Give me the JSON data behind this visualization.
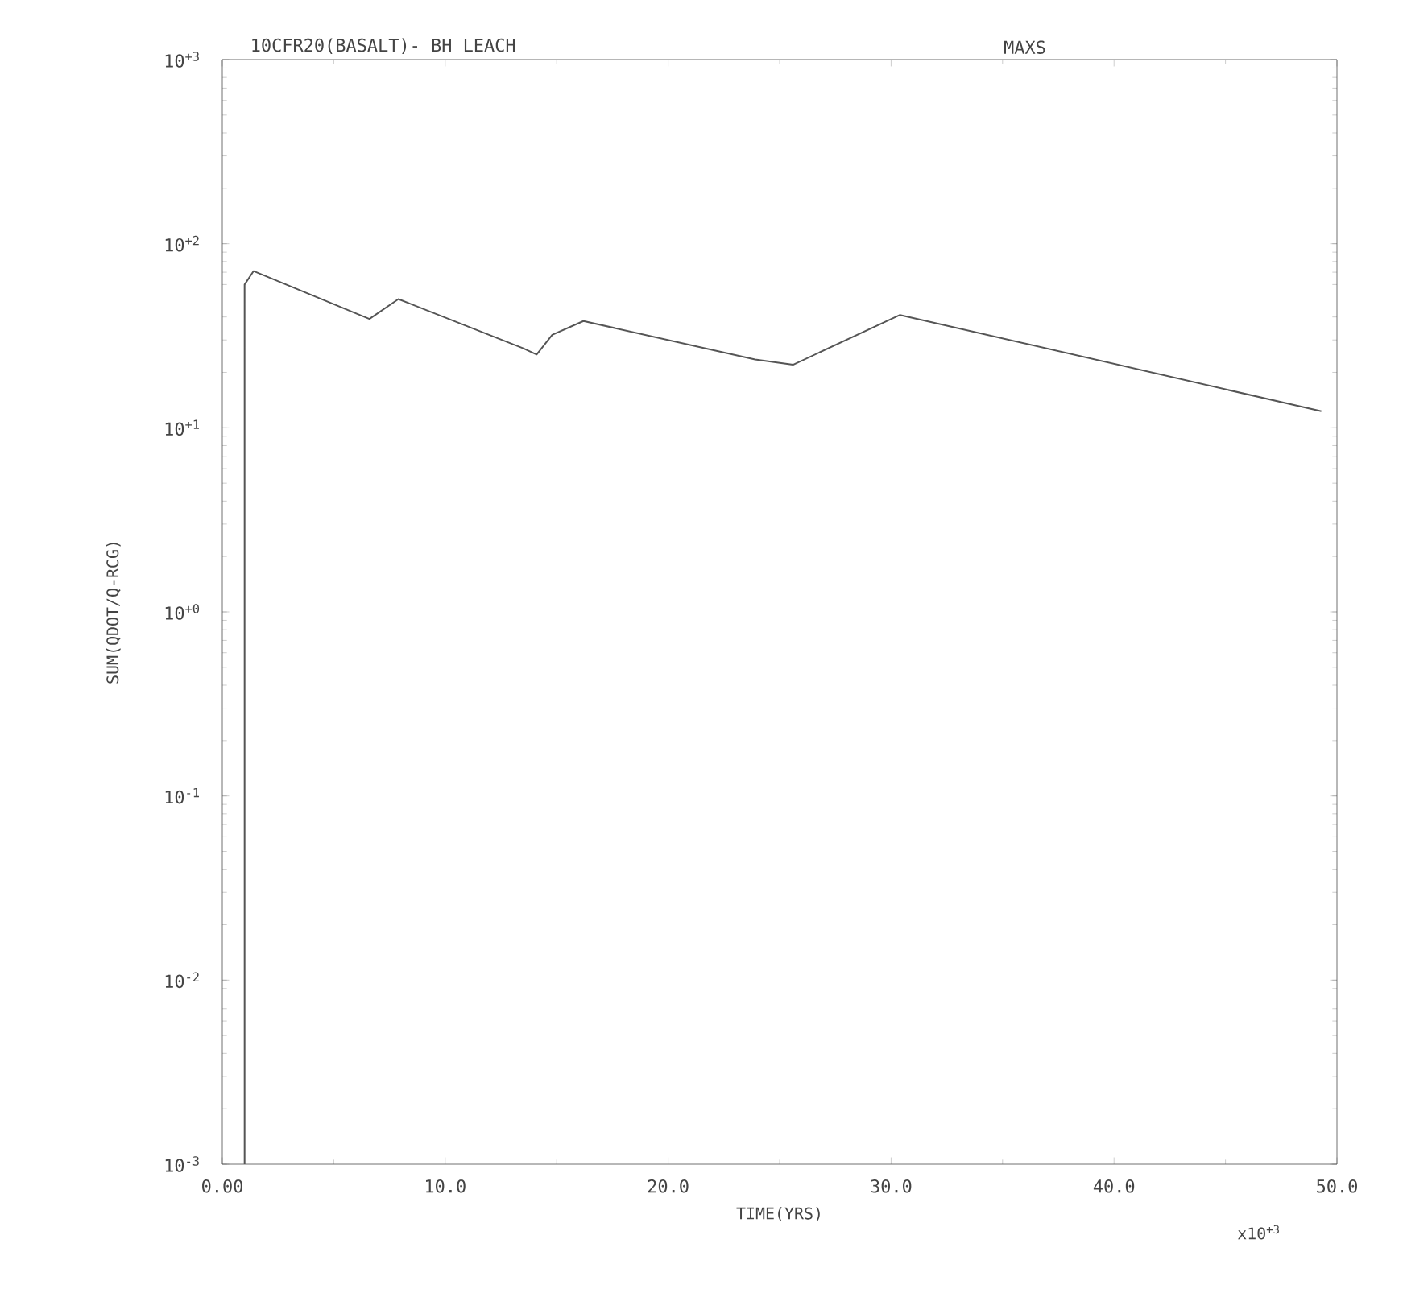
{
  "chart_data": {
    "type": "line",
    "title": "10CFR20(BASALT)- BH LEACH",
    "subtitle": "MAXS",
    "xlabel": "TIME(YRS)",
    "ylabel": "SUM(QDOT/Q-RCG)",
    "annotations": [
      "x10$^{+3}$"
    ],
    "log": "y",
    "grid": false,
    "marker": "none",
    "line_style": "solid",
    "xlim": [
      0,
      50
    ],
    "ylim": [
      0.001,
      1000
    ],
    "xticks": [
      {
        "value": 0,
        "label": "0.00"
      },
      {
        "value": 10,
        "label": "10.0"
      },
      {
        "value": 20,
        "label": "20.0"
      },
      {
        "value": 30,
        "label": "30.0"
      },
      {
        "value": 40,
        "label": "40.0"
      },
      {
        "value": 50,
        "label": "50.0"
      }
    ],
    "yticks": [
      {
        "value": 0.001,
        "label": "10$^{-3}$"
      },
      {
        "value": 0.01,
        "label": "10$^{-2}$"
      },
      {
        "value": 0.1,
        "label": "10$^{-1}$"
      },
      {
        "value": 1,
        "label": "10$^{+0}$"
      },
      {
        "value": 10,
        "label": "10$^{+1}$"
      },
      {
        "value": 100,
        "label": "10$^{+2}$"
      },
      {
        "value": 1000,
        "label": "10$^{+3}$"
      }
    ],
    "series": [
      {
        "color": "#555555",
        "x": [
          1.0,
          1.0,
          1.4,
          6.6,
          7.9,
          13.5,
          14.1,
          14.8,
          16.2,
          23.9,
          25.6,
          30.4,
          49.3
        ],
        "values": [
          0.001,
          60,
          71,
          39,
          50,
          27,
          25,
          32,
          38,
          23.5,
          22,
          41,
          12.3
        ]
      }
    ]
  }
}
